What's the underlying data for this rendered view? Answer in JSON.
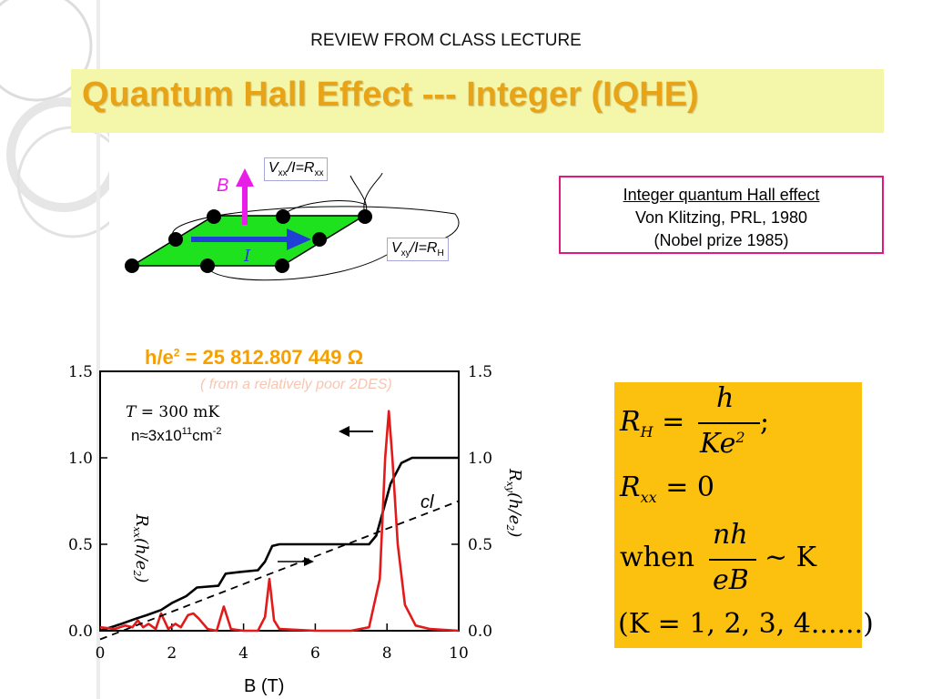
{
  "header": {
    "review_label": "REVIEW FROM CLASS LECTURE",
    "title": "Quantum Hall Effect --- Integer (IQHE)"
  },
  "reference": {
    "line1": "Integer quantum Hall effect",
    "line2": "Von Klitzing, PRL, 1980",
    "line3": "(Nobel prize 1985)"
  },
  "schematic": {
    "b_label": "B",
    "i_label": "I",
    "vxx_label": {
      "v": "V",
      "v_sub": "xx",
      "mid": "/I=",
      "r": "R",
      "r_sub": "xx"
    },
    "vxy_label": {
      "v": "V",
      "v_sub": "xy",
      "mid": "/I=",
      "r": "R",
      "r_sub": "H"
    },
    "colors": {
      "sample": "#1ee21e",
      "field": "#e81ee8",
      "current": "#1f3fd6",
      "contact": "#000000"
    }
  },
  "constants": {
    "he2_text": "h/e",
    "he2_sup": "2",
    "he2_value": " = 25 812.807 449 Ω",
    "note": "( from a relatively poor 2DES)"
  },
  "chart_data": {
    "type": "line",
    "xlabel": "B (T)",
    "x_ticks": [
      "0",
      "2",
      "4",
      "6",
      "8",
      "10"
    ],
    "y_ticks_left": [
      "0.0",
      "0.5",
      "1.0",
      "1.5"
    ],
    "y_ticks_right": [
      "0.0",
      "0.5",
      "1.0",
      "1.5"
    ],
    "ylabel_left": "Rxx(h/e2)",
    "ylabel_right": "Rxy(h/e2)",
    "xlim": [
      0,
      10
    ],
    "ylim": [
      0,
      1.5
    ],
    "annotations": {
      "temperature": "T = 300 mK",
      "density_base": "n≈3x10",
      "density_exp": "11",
      "density_unit": "cm",
      "density_unit_exp": "-2",
      "classical_label": "cl"
    },
    "series": [
      {
        "name": "Rxy",
        "color": "#000000",
        "x": [
          0,
          0.6,
          1.0,
          1.3,
          1.7,
          2.0,
          2.4,
          2.7,
          3.3,
          3.5,
          3.9,
          4.4,
          4.6,
          4.8,
          5.0,
          7.5,
          7.7,
          7.9,
          8.1,
          8.4,
          8.7,
          10
        ],
        "y": [
          0,
          0.04,
          0.07,
          0.09,
          0.12,
          0.16,
          0.2,
          0.25,
          0.26,
          0.33,
          0.34,
          0.35,
          0.4,
          0.49,
          0.5,
          0.5,
          0.55,
          0.7,
          0.85,
          0.97,
          1.0,
          1.0
        ]
      },
      {
        "name": "Rxx",
        "color": "#e31a1a",
        "x": [
          0,
          0.4,
          0.7,
          0.9,
          1.05,
          1.2,
          1.35,
          1.55,
          1.7,
          1.9,
          2.1,
          2.25,
          2.45,
          2.6,
          2.75,
          3.0,
          3.25,
          3.45,
          3.65,
          4.0,
          4.4,
          4.6,
          4.72,
          4.85,
          5.0,
          6.0,
          7.0,
          7.5,
          7.8,
          7.95,
          8.05,
          8.15,
          8.3,
          8.5,
          8.8,
          9.2,
          10
        ],
        "y": [
          0.02,
          0.01,
          0.03,
          0.02,
          0.06,
          0.02,
          0.04,
          0.01,
          0.1,
          0.01,
          0.04,
          0.02,
          0.09,
          0.1,
          0.07,
          0.01,
          0.0,
          0.14,
          0.01,
          0.0,
          0.0,
          0.08,
          0.3,
          0.06,
          0.01,
          0.0,
          0.0,
          0.02,
          0.3,
          1.0,
          1.27,
          1.0,
          0.5,
          0.15,
          0.03,
          0.01,
          0.0
        ]
      },
      {
        "name": "cl",
        "color": "#000000",
        "x": [
          0,
          10
        ],
        "y": [
          -0.05,
          0.75
        ]
      }
    ]
  },
  "formula": {
    "rh_lhs": "R",
    "rh_sub": "H",
    "rh_num": "h",
    "rh_den": "Ke",
    "rh_den_sup": "2",
    "rh_tail": ";",
    "rxx_lhs": "R",
    "rxx_sub": "xx",
    "rxx_rhs": "= 0",
    "when_label": "when",
    "when_num": "nh",
    "when_den": "eB",
    "when_tail": "~ K",
    "k_line": "(K = 1, 2, 3, 4......)"
  }
}
